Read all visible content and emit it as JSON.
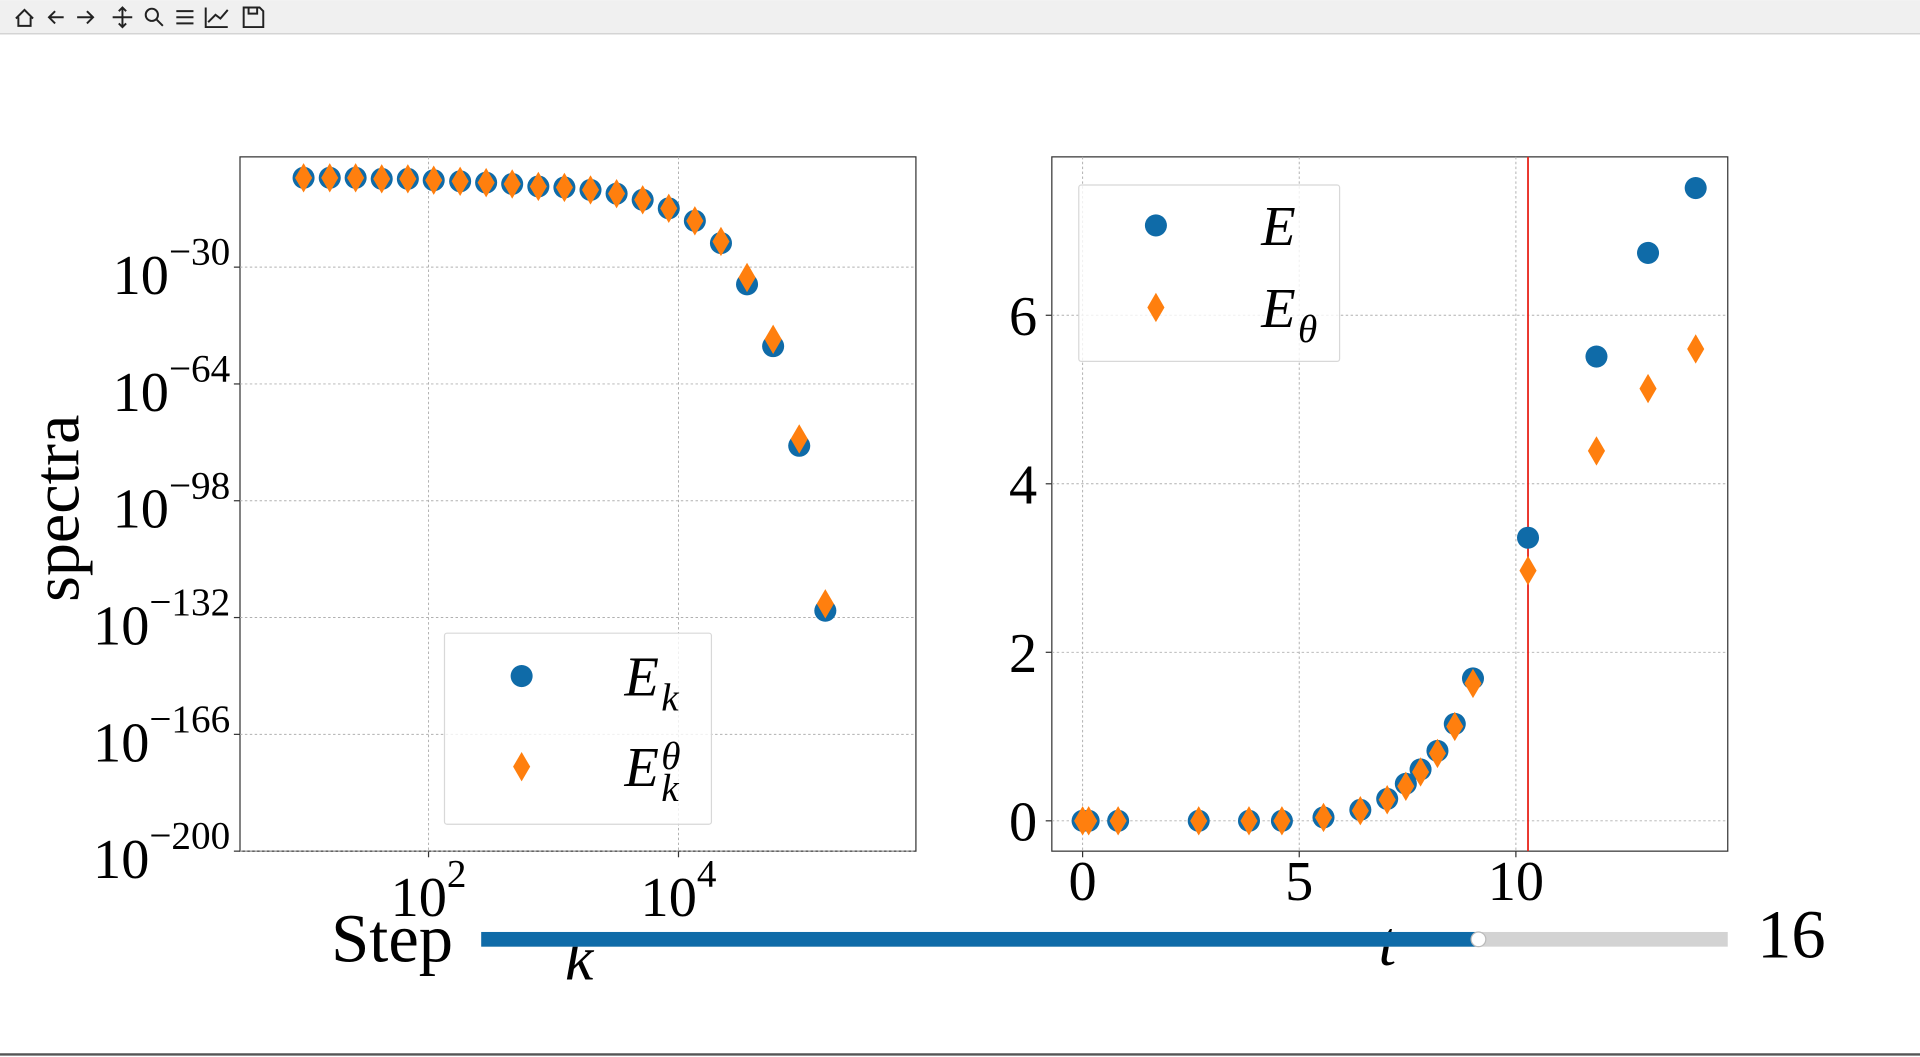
{
  "chart_data": [
    {
      "type": "scatter",
      "xscale": "log",
      "yscale": "log",
      "grid": true,
      "xlabel": "k",
      "ylabel": "spectra",
      "xlim": [
        3.1,
        794000
      ],
      "ylim": [
        1e-200,
        126
      ],
      "xticks": [
        {
          "value": 100,
          "label": "10",
          "sup": "2"
        },
        {
          "value": 10000,
          "label": "10",
          "sup": "4"
        }
      ],
      "yticks": [
        {
          "value": 1e-30,
          "label": "10",
          "sup": "−30"
        },
        {
          "value": 1e-64,
          "label": "10",
          "sup": "−64"
        },
        {
          "value": 1e-98,
          "label": "10",
          "sup": "−98"
        },
        {
          "value": 1e-132,
          "label": "10",
          "sup": "−132"
        },
        {
          "value": 1e-166,
          "label": "10",
          "sup": "−166"
        },
        {
          "value": 1e-200,
          "label": "10",
          "sup": "−200"
        }
      ],
      "legend": "lower center",
      "x": [
        10,
        16.2,
        26.1,
        42.2,
        68.3,
        110,
        179,
        289,
        467,
        756,
        1222,
        1977,
        3197,
        5170,
        8360,
        13520,
        21870,
        35360,
        57190,
        92490,
        149600
      ],
      "series": [
        {
          "name": "E",
          "name_sub": "k",
          "color": "#0f6ba8",
          "marker": "circle",
          "values": [
            0.0001,
            0.0001,
            0.0001,
            5e-05,
            5e-05,
            2e-05,
            1e-05,
            4e-06,
            1.6e-06,
            3e-07,
            1.6e-07,
            3e-08,
            2.5e-09,
            4e-11,
            1.3e-13,
            3e-17,
            1e-23,
            1e-35,
            1e-53,
            1e-82,
            1e-130
          ]
        },
        {
          "name": "E",
          "name_sub": "k",
          "name_sup": "θ",
          "color": "#ff7f0e",
          "marker": "diamond",
          "values": [
            0.0001,
            0.0001,
            0.0001,
            5e-05,
            5e-05,
            2e-05,
            1e-05,
            4e-06,
            1.6e-06,
            3e-07,
            1.6e-07,
            3e-08,
            2.5e-09,
            4e-11,
            1.3e-13,
            3e-17,
            3e-23,
            1e-33,
            1e-51,
            1e-80,
            1e-128
          ]
        }
      ]
    },
    {
      "type": "scatter",
      "grid": true,
      "xlabel": "t",
      "xlim": [
        -0.71,
        14.89
      ],
      "ylim": [
        -0.36,
        7.88
      ],
      "xticks": [
        0,
        5,
        10
      ],
      "yticks": [
        0,
        2,
        4,
        6
      ],
      "legend": "upper left",
      "vline": 10.28,
      "vline_color": "#e8281e",
      "x": [
        0,
        0.14,
        0.82,
        2.68,
        3.84,
        4.6,
        5.56,
        6.41,
        7.03,
        7.46,
        7.8,
        8.19,
        8.59,
        9.01,
        10.28,
        11.86,
        13.05,
        14.15
      ],
      "series": [
        {
          "name": "E",
          "color": "#0f6ba8",
          "marker": "circle",
          "values": [
            0,
            0,
            0,
            0,
            0,
            0,
            0.04,
            0.13,
            0.26,
            0.44,
            0.61,
            0.83,
            1.15,
            1.69,
            3.36,
            5.51,
            6.74,
            7.51
          ]
        },
        {
          "name": "E",
          "name_sub": "θ",
          "color": "#ff7f0e",
          "marker": "diamond",
          "values": [
            0,
            0,
            0,
            0,
            0,
            0,
            0.04,
            0.12,
            0.25,
            0.41,
            0.58,
            0.8,
            1.12,
            1.63,
            2.97,
            4.39,
            5.13,
            5.6
          ]
        }
      ]
    }
  ],
  "slider": {
    "label": "Step",
    "value": 16,
    "value_label": "16",
    "min": 0,
    "max": 20
  }
}
